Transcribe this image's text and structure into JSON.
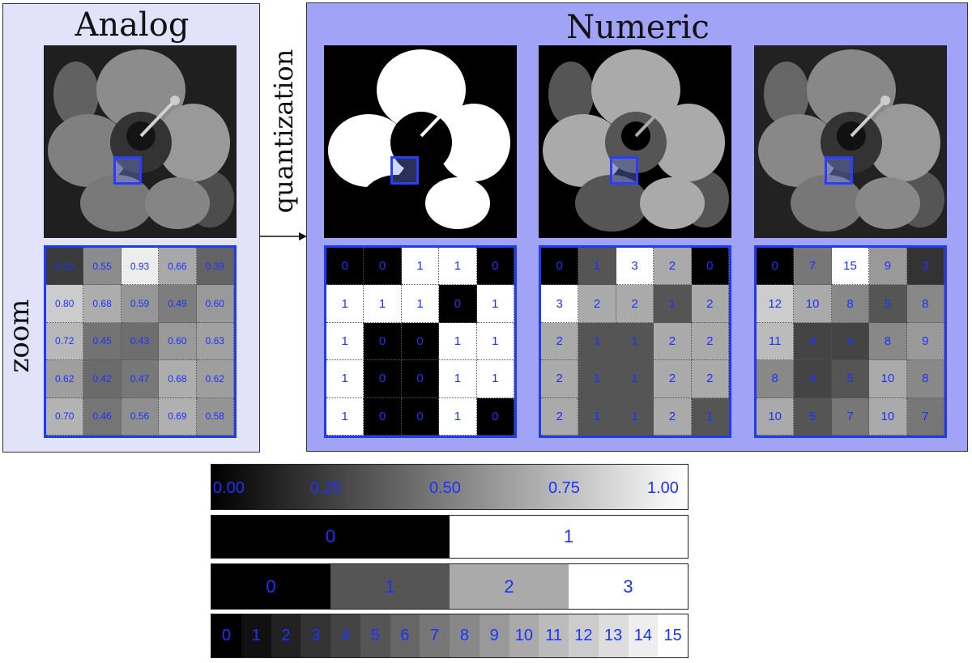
{
  "analog": {
    "title": "Analog",
    "side_label": "zoom",
    "values": [
      [
        "0.23",
        "0.55",
        "0.93",
        "0.66",
        "0.39"
      ],
      [
        "0.80",
        "0.68",
        "0.59",
        "0.49",
        "0.60"
      ],
      [
        "0.72",
        "0.45",
        "0.43",
        "0.60",
        "0.63"
      ],
      [
        "0.62",
        "0.42",
        "0.47",
        "0.68",
        "0.62"
      ],
      [
        "0.70",
        "0.46",
        "0.56",
        "0.69",
        "0.58"
      ]
    ]
  },
  "arrow_label": "quantization",
  "numeric": {
    "title": "Numeric",
    "levels_1bit": [
      [
        "0",
        "0",
        "1",
        "1",
        "0"
      ],
      [
        "1",
        "1",
        "1",
        "0",
        "1"
      ],
      [
        "1",
        "0",
        "0",
        "1",
        "1"
      ],
      [
        "1",
        "0",
        "0",
        "1",
        "1"
      ],
      [
        "1",
        "0",
        "0",
        "1",
        "0"
      ]
    ],
    "levels_2bit": [
      [
        "0",
        "1",
        "3",
        "2",
        "0"
      ],
      [
        "3",
        "2",
        "2",
        "1",
        "2"
      ],
      [
        "2",
        "1",
        "1",
        "2",
        "2"
      ],
      [
        "2",
        "1",
        "1",
        "2",
        "2"
      ],
      [
        "2",
        "1",
        "1",
        "2",
        "1"
      ]
    ],
    "levels_4bit": [
      [
        "0",
        "7",
        "15",
        "9",
        "3"
      ],
      [
        "12",
        "10",
        "8",
        "5",
        "8"
      ],
      [
        "11",
        "4",
        "4",
        "8",
        "9"
      ],
      [
        "8",
        "4",
        "5",
        "10",
        "8"
      ],
      [
        "10",
        "5",
        "7",
        "10",
        "7"
      ]
    ]
  },
  "legend": {
    "scale_ticks": [
      "0.00",
      "0.25",
      "0.50",
      "0.75",
      "1.00"
    ],
    "bins_1bit": [
      "0",
      "1"
    ],
    "bins_2bit": [
      "0",
      "1",
      "2",
      "3"
    ],
    "bins_4bit": [
      "0",
      "1",
      "2",
      "3",
      "4",
      "5",
      "6",
      "7",
      "8",
      "9",
      "10",
      "11",
      "12",
      "13",
      "14",
      "15"
    ]
  },
  "colors": {
    "accent": "#1a33ff",
    "analog_bg": "#e2e3fa",
    "numeric_bg": "#a0a3f6"
  }
}
